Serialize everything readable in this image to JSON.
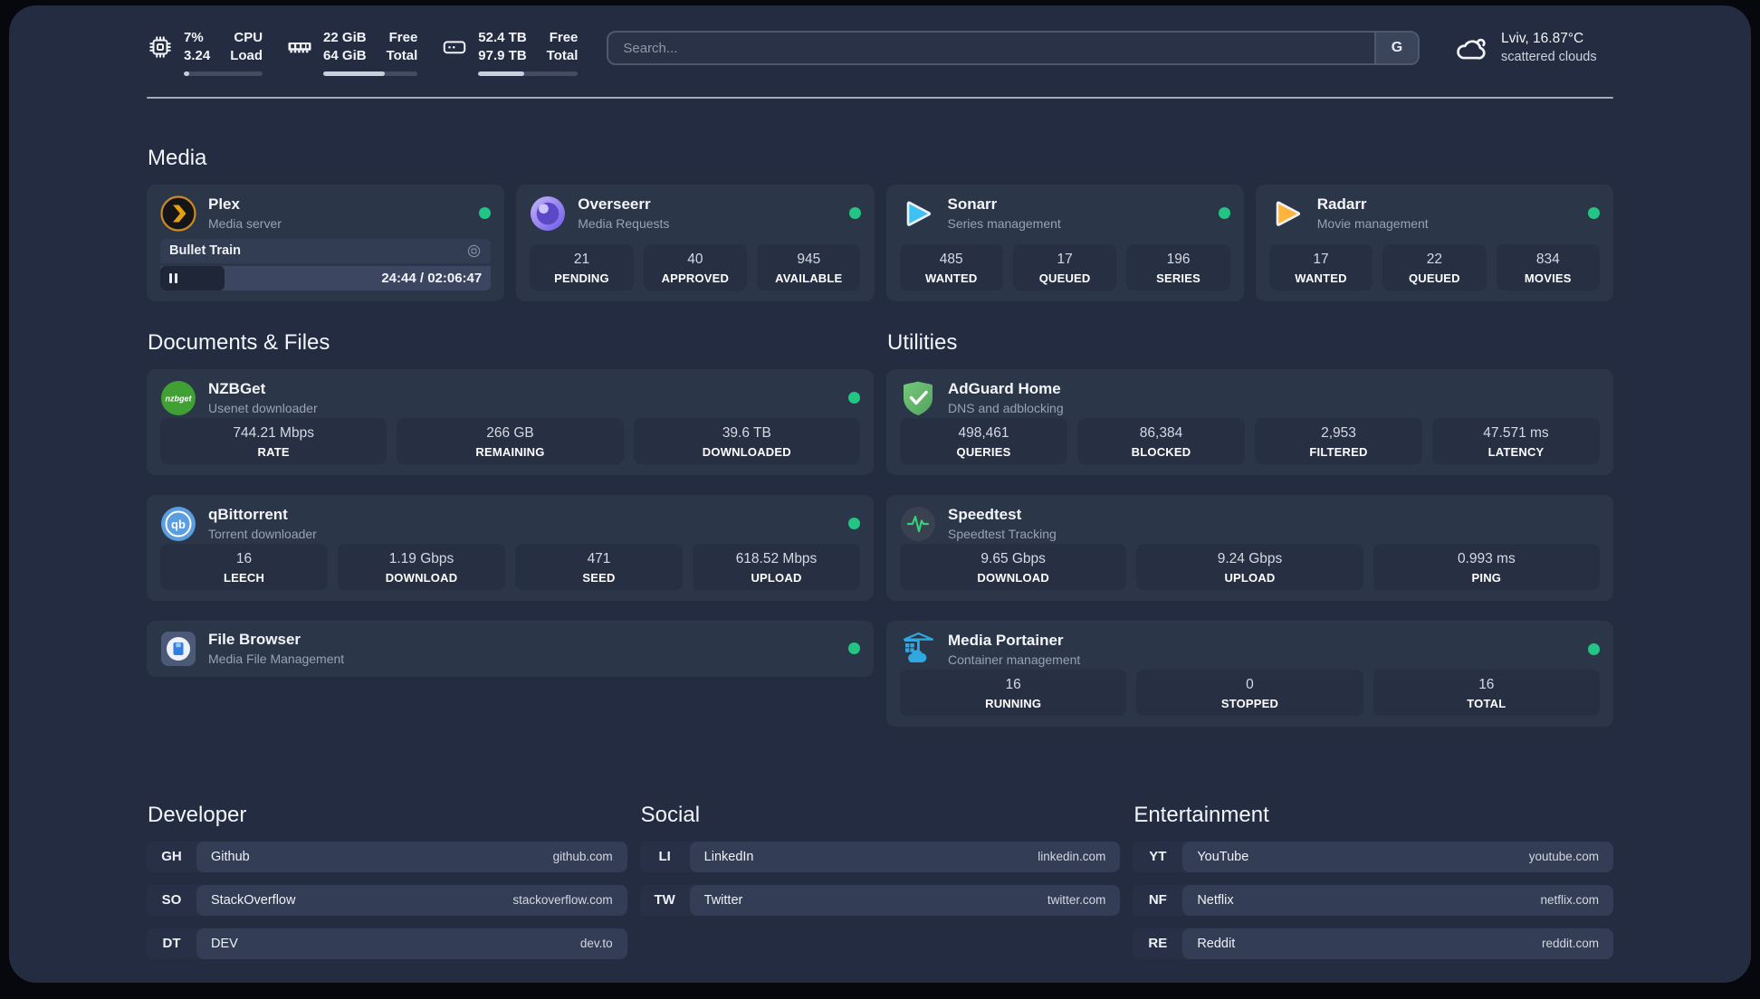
{
  "colors": {
    "background": "#232c41",
    "card": "#2c3649",
    "tile": "#272f42",
    "status_online_green": "#22c584",
    "progress_fill": "#c9d0dd"
  },
  "topbar": {
    "monitors": [
      {
        "icon": "cpu-icon",
        "values": [
          "7%",
          "3.24"
        ],
        "labels": [
          "CPU",
          "Load"
        ],
        "progress_pct": 7
      },
      {
        "icon": "memory-icon",
        "values": [
          "22 GiB",
          "64 GiB"
        ],
        "labels": [
          "Free",
          "Total"
        ],
        "progress_pct": 65
      },
      {
        "icon": "disk-icon",
        "values": [
          "52.4 TB",
          "97.9 TB"
        ],
        "labels": [
          "Free",
          "Total"
        ],
        "progress_pct": 46
      }
    ],
    "search": {
      "placeholder": "Search...",
      "engine_button": "G"
    },
    "weather": {
      "icon": "cloud-icon",
      "location": "Lviv, 16.87°C",
      "condition": "scattered clouds"
    }
  },
  "media_section": {
    "title": "Media",
    "apps": [
      {
        "id": "plex",
        "icon": "plex-icon",
        "name": "Plex",
        "description": "Media server",
        "online": true,
        "now_playing": {
          "title": "Bullet Train",
          "meta_icon": "screen-icon",
          "progress_pct": 19.5,
          "time_display": "24:44 / 02:06:47"
        }
      },
      {
        "id": "overseerr",
        "icon": "overseerr-icon",
        "name": "Overseerr",
        "description": "Media Requests",
        "online": true,
        "stats": [
          {
            "value": "21",
            "label": "PENDING"
          },
          {
            "value": "40",
            "label": "APPROVED"
          },
          {
            "value": "945",
            "label": "AVAILABLE"
          }
        ]
      },
      {
        "id": "sonarr",
        "icon": "sonarr-icon",
        "name": "Sonarr",
        "description": "Series management",
        "online": true,
        "stats": [
          {
            "value": "485",
            "label": "WANTED"
          },
          {
            "value": "17",
            "label": "QUEUED"
          },
          {
            "value": "196",
            "label": "SERIES"
          }
        ]
      },
      {
        "id": "radarr",
        "icon": "radarr-icon",
        "name": "Radarr",
        "description": "Movie management",
        "online": true,
        "stats": [
          {
            "value": "17",
            "label": "WANTED"
          },
          {
            "value": "22",
            "label": "QUEUED"
          },
          {
            "value": "834",
            "label": "MOVIES"
          }
        ]
      }
    ]
  },
  "middle_columns": [
    {
      "title": "Documents & Files",
      "apps": [
        {
          "id": "nzbget",
          "icon": "nzbget-icon",
          "name": "NZBGet",
          "description": "Usenet downloader",
          "online": true,
          "stats": [
            {
              "value": "744.21 Mbps",
              "label": "RATE"
            },
            {
              "value": "266 GB",
              "label": "REMAINING"
            },
            {
              "value": "39.6 TB",
              "label": "DOWNLOADED"
            }
          ]
        },
        {
          "id": "qbittorrent",
          "icon": "qbittorrent-icon",
          "name": "qBittorrent",
          "description": "Torrent downloader",
          "online": true,
          "stats": [
            {
              "value": "16",
              "label": "LEECH"
            },
            {
              "value": "1.19 Gbps",
              "label": "DOWNLOAD"
            },
            {
              "value": "471",
              "label": "SEED"
            },
            {
              "value": "618.52 Mbps",
              "label": "UPLOAD"
            }
          ]
        },
        {
          "id": "filebrowser",
          "icon": "filebrowser-icon",
          "name": "File Browser",
          "description": "Media File Management",
          "online": true
        }
      ]
    },
    {
      "title": "Utilities",
      "apps": [
        {
          "id": "adguard",
          "icon": "adguard-icon",
          "name": "AdGuard Home",
          "description": "DNS and adblocking",
          "online": false,
          "stats": [
            {
              "value": "498,461",
              "label": "QUERIES"
            },
            {
              "value": "86,384",
              "label": "BLOCKED"
            },
            {
              "value": "2,953",
              "label": "FILTERED"
            },
            {
              "value": "47.571 ms",
              "label": "LATENCY"
            }
          ]
        },
        {
          "id": "speedtest",
          "icon": "speedtest-icon",
          "name": "Speedtest",
          "description": "Speedtest Tracking",
          "online": false,
          "stats": [
            {
              "value": "9.65 Gbps",
              "label": "DOWNLOAD"
            },
            {
              "value": "9.24 Gbps",
              "label": "UPLOAD"
            },
            {
              "value": "0.993 ms",
              "label": "PING"
            }
          ]
        },
        {
          "id": "portainer",
          "icon": "portainer-icon",
          "name": "Media Portainer",
          "description": "Container management",
          "online": true,
          "stats": [
            {
              "value": "16",
              "label": "RUNNING"
            },
            {
              "value": "0",
              "label": "STOPPED"
            },
            {
              "value": "16",
              "label": "TOTAL"
            }
          ]
        }
      ]
    }
  ],
  "link_sections": [
    {
      "title": "Developer",
      "links": [
        {
          "tag": "GH",
          "name": "Github",
          "url": "github.com"
        },
        {
          "tag": "SO",
          "name": "StackOverflow",
          "url": "stackoverflow.com"
        },
        {
          "tag": "DT",
          "name": "DEV",
          "url": "dev.to"
        }
      ]
    },
    {
      "title": "Social",
      "links": [
        {
          "tag": "LI",
          "name": "LinkedIn",
          "url": "linkedin.com"
        },
        {
          "tag": "TW",
          "name": "Twitter",
          "url": "twitter.com"
        }
      ]
    },
    {
      "title": "Entertainment",
      "links": [
        {
          "tag": "YT",
          "name": "YouTube",
          "url": "youtube.com"
        },
        {
          "tag": "NF",
          "name": "Netflix",
          "url": "netflix.com"
        },
        {
          "tag": "RE",
          "name": "Reddit",
          "url": "reddit.com"
        }
      ]
    }
  ]
}
